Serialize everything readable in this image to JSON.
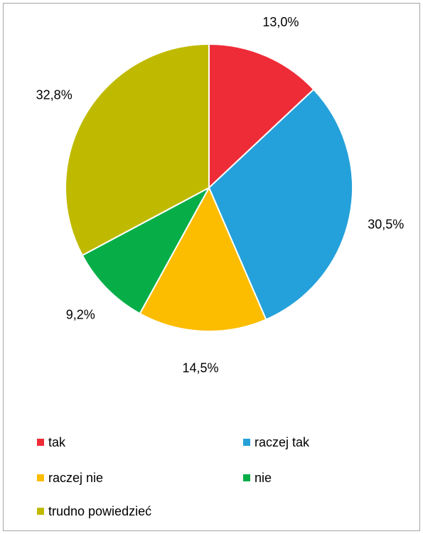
{
  "chart_data": {
    "type": "pie",
    "slices": [
      {
        "label": "tak",
        "value": 13.0,
        "display": "13,0%",
        "color": "#ee2c37"
      },
      {
        "label": "raczej tak",
        "value": 30.5,
        "display": "30,5%",
        "color": "#24a1da"
      },
      {
        "label": "raczej nie",
        "value": 14.5,
        "display": "14,5%",
        "color": "#fcbc00"
      },
      {
        "label": "nie",
        "value": 9.2,
        "display": "9,2%",
        "color": "#07ae48"
      },
      {
        "label": "trudno powiedzieć",
        "value": 32.8,
        "display": "32,8%",
        "color": "#bfba00"
      }
    ],
    "legend_position": "bottom",
    "start_angle": "12 o'clock, clockwise"
  }
}
